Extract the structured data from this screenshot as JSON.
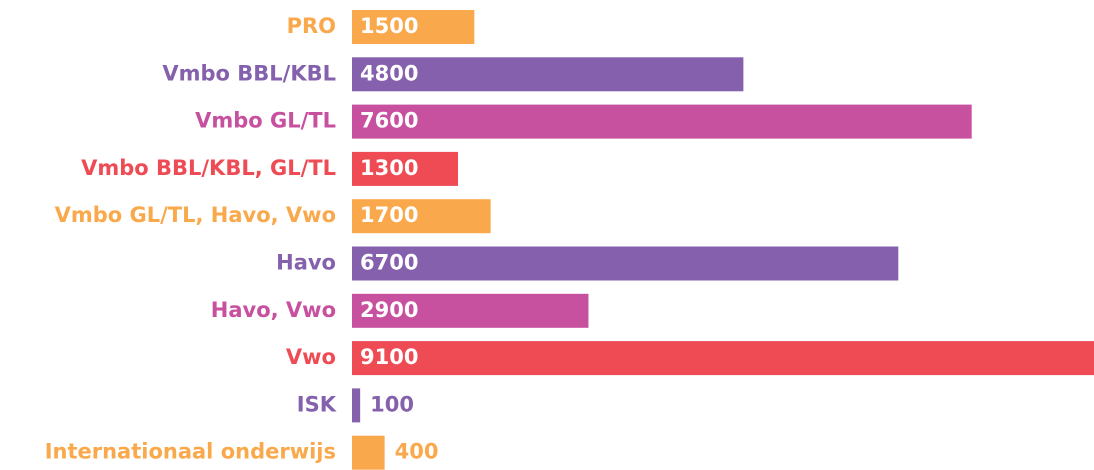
{
  "chart_data": {
    "type": "bar",
    "orientation": "horizontal",
    "categories": [
      "PRO",
      "Vmbo BBL/KBL",
      "Vmbo GL/TL",
      "Vmbo BBL/KBL, GL/TL",
      "Vmbo GL/TL, Havo, Vwo",
      "Havo",
      "Havo, Vwo",
      "Vwo",
      "ISK",
      "Internationaal onderwijs"
    ],
    "values": [
      1500,
      4800,
      7600,
      1300,
      1700,
      6700,
      2900,
      9100,
      100,
      400
    ],
    "colors": [
      "#f9a94b",
      "#8560ac",
      "#c7509f",
      "#ef4b54",
      "#f9a94b",
      "#8560ac",
      "#c7509f",
      "#ef4b54",
      "#8560ac",
      "#f9a94b"
    ],
    "xlim": [
      0,
      9100
    ]
  }
}
